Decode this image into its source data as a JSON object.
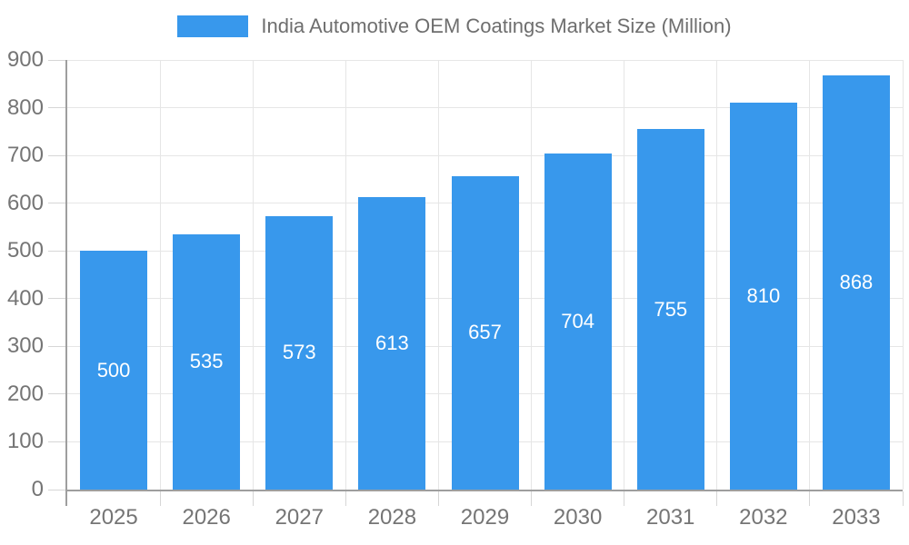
{
  "chart_data": {
    "type": "bar",
    "title": "India Automotive OEM Coatings Market Size (Million)",
    "categories": [
      "2025",
      "2026",
      "2027",
      "2028",
      "2029",
      "2030",
      "2031",
      "2032",
      "2033"
    ],
    "values": [
      500,
      535,
      573,
      613,
      657,
      704,
      755,
      810,
      868
    ],
    "xlabel": "",
    "ylabel": "",
    "ylim": [
      0,
      900
    ],
    "ytick_interval": 100,
    "yticks": [
      0,
      100,
      200,
      300,
      400,
      500,
      600,
      700,
      800,
      900
    ],
    "grid": true,
    "legend_position": "top",
    "bar_color": "#3898ec",
    "bar_label_color": "#ffffff",
    "axis_label_color": "#757575",
    "legend_label_color": "#6e6e6e",
    "gridline_color": "#e6e6e6",
    "tick_color": "#d6d6d6",
    "axis_line_color": "#9e9e9e"
  }
}
